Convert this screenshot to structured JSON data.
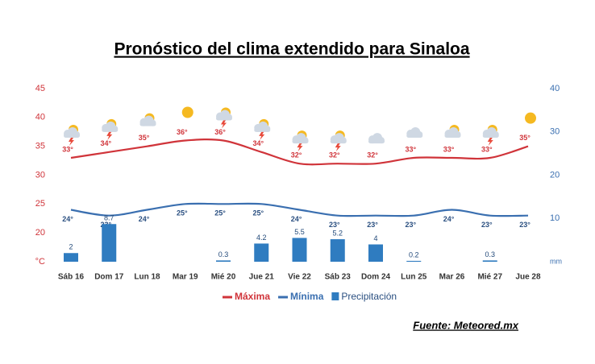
{
  "chart_data": {
    "type": "line",
    "title": "Pronóstico del clima extendido para Sinaloa",
    "categories": [
      "Sáb 16",
      "Dom 17",
      "Lun 18",
      "Mar 19",
      "Mié 20",
      "Jue 21",
      "Vie 22",
      "Sáb 23",
      "Dom 24",
      "Lun 25",
      "Mar 26",
      "Mié 27",
      "Jue 28"
    ],
    "series": [
      {
        "name": "Máxima",
        "color": "#d0343a",
        "values": [
          33,
          34,
          35,
          36,
          36,
          34,
          32,
          32,
          32,
          33,
          33,
          33,
          35
        ],
        "value_labels": [
          "33°",
          "34°",
          "35°",
          "36°",
          "36°",
          "34°",
          "32°",
          "32°",
          "32°",
          "33°",
          "33°",
          "33°",
          "35°"
        ]
      },
      {
        "name": "Mínima",
        "color": "#3a6fb0",
        "values": [
          24,
          23,
          24,
          25,
          25,
          25,
          24,
          23,
          23,
          23,
          24,
          23,
          23
        ],
        "value_labels": [
          "24°",
          "23°",
          "24°",
          "25°",
          "25°",
          "25°",
          "24°",
          "23°",
          "23°",
          "23°",
          "24°",
          "23°",
          "23°"
        ]
      },
      {
        "name": "Precipitación",
        "type": "bar",
        "axis": "y2",
        "color": "#2f7cc0",
        "values": [
          2,
          8.7,
          null,
          null,
          0.3,
          4.2,
          5.5,
          5.2,
          4,
          0.2,
          null,
          0.3,
          null
        ]
      }
    ],
    "ylim": [
      15,
      45
    ],
    "yticks": [
      {
        "value": 15,
        "label": "°C"
      },
      20,
      25,
      30,
      35,
      40,
      45
    ],
    "y2lim": [
      0,
      40
    ],
    "y2ticks": [
      {
        "value": 0,
        "label": "mm"
      },
      10,
      20,
      30,
      40
    ],
    "source": "Fuente: Meteored.mx"
  }
}
